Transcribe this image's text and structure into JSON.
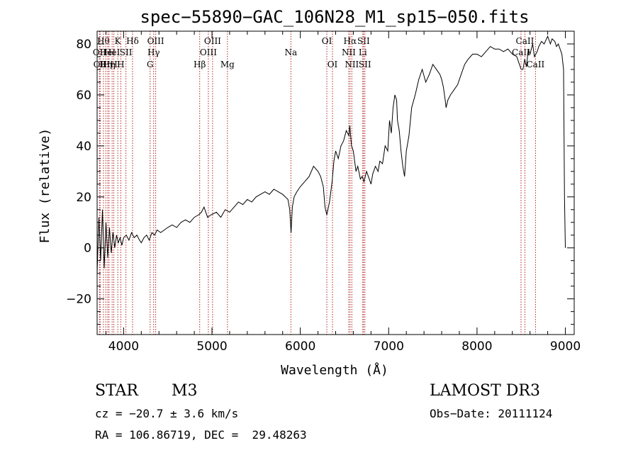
{
  "chart_data": {
    "type": "line",
    "title": "spec−55890−GAC_106N28_M1_sp15−050.fits",
    "xlabel": "Wavelength (Å)",
    "ylabel": "Flux (relative)",
    "xlim": [
      3700,
      9100
    ],
    "ylim": [
      -34,
      85
    ],
    "xticks": [
      4000,
      5000,
      6000,
      7000,
      8000,
      9000
    ],
    "yticks": [
      -20,
      0,
      20,
      40,
      60,
      80
    ],
    "xtick_labels": [
      "4000",
      "5000",
      "6000",
      "7000",
      "8000",
      "9000"
    ],
    "ytick_labels": [
      "−20",
      "0",
      "20",
      "40",
      "60",
      "80"
    ],
    "series": [
      {
        "name": "flux",
        "x": [
          3700,
          3720,
          3740,
          3760,
          3780,
          3800,
          3820,
          3840,
          3860,
          3880,
          3900,
          3920,
          3940,
          3960,
          3980,
          4000,
          4030,
          4060,
          4090,
          4120,
          4150,
          4180,
          4200,
          4230,
          4260,
          4290,
          4320,
          4350,
          4380,
          4420,
          4460,
          4500,
          4550,
          4600,
          4650,
          4700,
          4750,
          4800,
          4850,
          4880,
          4910,
          4950,
          4990,
          5050,
          5100,
          5150,
          5200,
          5250,
          5300,
          5350,
          5400,
          5450,
          5500,
          5550,
          5600,
          5650,
          5700,
          5750,
          5800,
          5830,
          5860,
          5880,
          5895,
          5910,
          5930,
          5960,
          6000,
          6050,
          6100,
          6150,
          6200,
          6230,
          6260,
          6280,
          6300,
          6330,
          6360,
          6380,
          6400,
          6430,
          6460,
          6490,
          6520,
          6550,
          6560,
          6580,
          6600,
          6630,
          6650,
          6680,
          6700,
          6720,
          6750,
          6780,
          6800,
          6820,
          6850,
          6880,
          6900,
          6930,
          6960,
          6990,
          7010,
          7030,
          7050,
          7070,
          7090,
          7100,
          7120,
          7140,
          7160,
          7180,
          7200,
          7230,
          7260,
          7300,
          7340,
          7380,
          7420,
          7460,
          7500,
          7540,
          7580,
          7600,
          7620,
          7640,
          7650,
          7670,
          7700,
          7740,
          7780,
          7820,
          7860,
          7900,
          7950,
          8000,
          8050,
          8100,
          8150,
          8200,
          8250,
          8300,
          8350,
          8400,
          8450,
          8480,
          8500,
          8520,
          8540,
          8560,
          8580,
          8600,
          8630,
          8650,
          8680,
          8700,
          8730,
          8760,
          8800,
          8830,
          8850,
          8880,
          8900,
          8920,
          8940,
          8960,
          8980,
          8990,
          9000
        ],
        "y": [
          -10,
          12,
          -5,
          15,
          -8,
          10,
          -4,
          8,
          -2,
          6,
          0,
          5,
          2,
          4,
          1,
          4,
          5,
          3,
          6,
          4,
          5,
          3,
          2,
          4,
          5,
          3,
          6,
          5,
          7,
          6,
          7,
          8,
          9,
          8,
          10,
          11,
          10,
          12,
          13,
          14,
          16,
          12,
          13,
          14,
          12,
          15,
          14,
          16,
          18,
          17,
          19,
          18,
          20,
          21,
          22,
          21,
          23,
          22,
          21,
          20,
          19,
          15,
          6,
          16,
          20,
          22,
          24,
          26,
          28,
          32,
          30,
          28,
          24,
          16,
          13,
          18,
          26,
          34,
          38,
          35,
          40,
          42,
          46,
          44,
          48,
          40,
          38,
          30,
          32,
          27,
          28,
          26,
          30,
          27,
          25,
          29,
          32,
          30,
          34,
          33,
          40,
          38,
          50,
          45,
          55,
          60,
          58,
          50,
          46,
          38,
          32,
          28,
          38,
          44,
          55,
          60,
          66,
          70,
          65,
          68,
          72,
          70,
          68,
          66,
          63,
          58,
          55,
          58,
          60,
          62,
          64,
          68,
          72,
          74,
          76,
          76,
          75,
          77,
          79,
          78,
          78,
          77,
          78,
          76,
          75,
          72,
          70,
          70,
          74,
          71,
          78,
          76,
          80,
          75,
          77,
          79,
          81,
          80,
          83,
          80,
          82,
          81,
          79,
          80,
          78,
          76,
          70,
          20,
          0
        ],
        "color": "#000000"
      }
    ],
    "line_markers": [
      {
        "wl": 3728,
        "label": "OII",
        "row": 2
      },
      {
        "wl": 3734,
        "label": "OII",
        "row": 3
      },
      {
        "wl": 3771,
        "label": "Hθ",
        "row": 1
      },
      {
        "wl": 3798,
        "label": "Hη",
        "row": 3
      },
      {
        "wl": 3820,
        "label": "HeI",
        "row": 2
      },
      {
        "wl": 3835,
        "label": "Hη",
        "row": 3
      },
      {
        "wl": 3870,
        "label": "HeI",
        "row": 2
      },
      {
        "wl": 3889,
        "label": "H",
        "row": 3
      },
      {
        "wl": 3934,
        "label": "K",
        "row": 1
      },
      {
        "wl": 3968,
        "label": "H",
        "row": 3
      },
      {
        "wl": 4026,
        "label": "SII",
        "row": 2
      },
      {
        "wl": 4101,
        "label": "Hδ",
        "row": 1
      },
      {
        "wl": 4300,
        "label": "G",
        "row": 3
      },
      {
        "wl": 4340,
        "label": "Hγ",
        "row": 2
      },
      {
        "wl": 4363,
        "label": "OIII",
        "row": 1
      },
      {
        "wl": 4861,
        "label": "Hβ",
        "row": 3
      },
      {
        "wl": 4959,
        "label": "OIII",
        "row": 2
      },
      {
        "wl": 5007,
        "label": "OIII",
        "row": 1
      },
      {
        "wl": 5175,
        "label": "Mg",
        "row": 3
      },
      {
        "wl": 5893,
        "label": "Na",
        "row": 2
      },
      {
        "wl": 6300,
        "label": "OI",
        "row": 1
      },
      {
        "wl": 6364,
        "label": "OI",
        "row": 3
      },
      {
        "wl": 6548,
        "label": "NII",
        "row": 2
      },
      {
        "wl": 6563,
        "label": "Hα",
        "row": 1
      },
      {
        "wl": 6583,
        "label": "NII",
        "row": 3
      },
      {
        "wl": 6707,
        "label": "Li",
        "row": 2
      },
      {
        "wl": 6716,
        "label": "SII",
        "row": 1
      },
      {
        "wl": 6731,
        "label": "SII",
        "row": 3
      },
      {
        "wl": 8498,
        "label": "CaII",
        "row": 2
      },
      {
        "wl": 8542,
        "label": "CaII",
        "row": 1
      },
      {
        "wl": 8662,
        "label": "CaII",
        "row": 3
      }
    ]
  },
  "info": {
    "class": "STAR",
    "subclass": "M3",
    "survey": "LAMOST DR3",
    "cz": "cz = −20.7 ± 3.6 km/s",
    "obs_date": "Obs−Date: 20111124",
    "radec": "RA = 106.86719, DEC =  29.48263"
  }
}
